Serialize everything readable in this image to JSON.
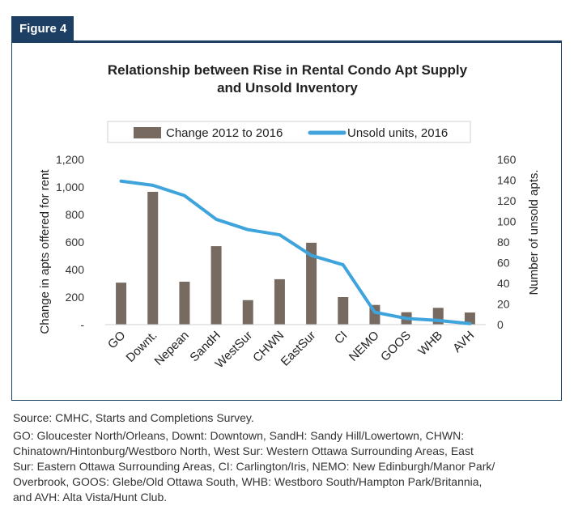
{
  "figure_label": "Figure 4",
  "source_text": "Source: CMHC, Starts and Completions Survey.",
  "notes_lines": [
    "GO: Gloucester North/Orleans, Downt: Downtown, SandH: Sandy Hill/Lowertown, CHWN:",
    "Chinatown/Hintonburg/Westboro North, West Sur: Western Ottawa Surrounding Areas, East",
    "Sur: Eastern Ottawa Surrounding Areas, CI: Carlington/Iris, NEMO: New Edinburgh/Manor Park/",
    "Overbrook, GOOS: Glebe/Old Ottawa South, WHB: Westboro South/Hampton Park/Britannia,",
    "and AVH: Alta Vista/Hunt Club."
  ],
  "chart_data": {
    "type": "bar",
    "title_lines": [
      "Relationship between Rise in Rental Condo Apt Supply",
      "and Unsold Inventory"
    ],
    "categories": [
      "GO",
      "Downt.",
      "Nepean",
      "SandH",
      "WestSur",
      "CHWN",
      "EastSur",
      "CI",
      "NEMO",
      "GOOS",
      "WHB",
      "AVH"
    ],
    "series": [
      {
        "name": "Change 2012 to 2016",
        "type": "bar",
        "axis": "left",
        "color": "#776b61",
        "values": [
          305,
          965,
          312,
          570,
          178,
          330,
          595,
          200,
          143,
          90,
          122,
          88
        ]
      },
      {
        "name": "Unsold units, 2016",
        "type": "line",
        "axis": "right",
        "color": "#3fa3dc",
        "values": [
          139,
          135,
          125,
          102,
          92,
          87,
          67,
          58,
          12,
          6,
          4,
          1
        ]
      }
    ],
    "ylabel_left": "Change in apts offered for rent",
    "ylabel_right": "Number of unsold apts.",
    "ylim_left": [
      0,
      1200
    ],
    "ylim_right": [
      0,
      160
    ],
    "left_ticks": [
      "-",
      "200",
      "400",
      "600",
      "800",
      "1,000",
      "1,200"
    ],
    "right_ticks": [
      "0",
      "20",
      "40",
      "60",
      "80",
      "100",
      "120",
      "140",
      "160"
    ],
    "legend_position": "top",
    "grid": false
  }
}
